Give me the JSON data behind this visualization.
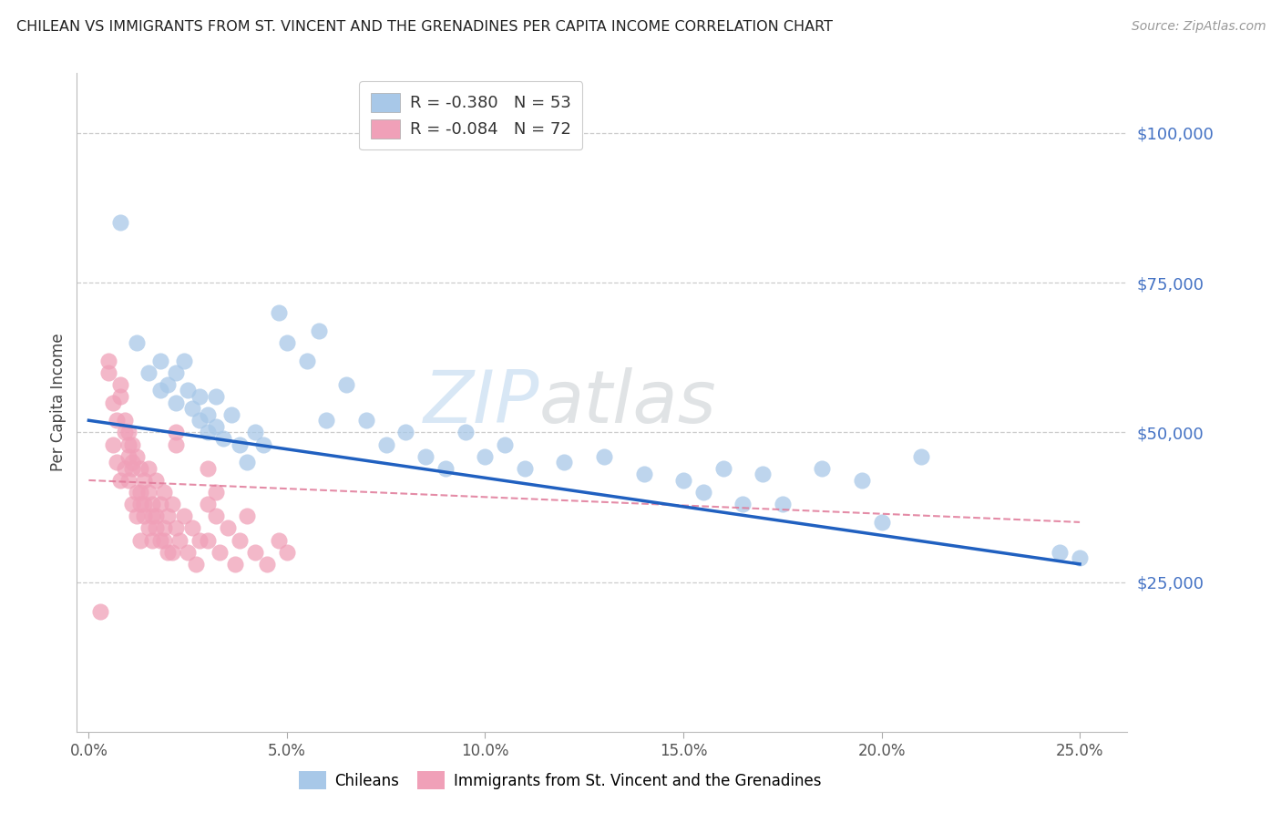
{
  "title": "CHILEAN VS IMMIGRANTS FROM ST. VINCENT AND THE GRENADINES PER CAPITA INCOME CORRELATION CHART",
  "source": "Source: ZipAtlas.com",
  "ylabel": "Per Capita Income",
  "xlabel_ticks": [
    "0.0%",
    "5.0%",
    "10.0%",
    "15.0%",
    "20.0%",
    "25.0%"
  ],
  "xlabel_vals": [
    0.0,
    0.05,
    0.1,
    0.15,
    0.2,
    0.25
  ],
  "ytick_labels": [
    "$25,000",
    "$50,000",
    "$75,000",
    "$100,000"
  ],
  "ytick_vals": [
    25000,
    50000,
    75000,
    100000
  ],
  "ylim": [
    0,
    110000
  ],
  "xlim": [
    -0.003,
    0.262
  ],
  "blue_R": "-0.380",
  "blue_N": "53",
  "pink_R": "-0.084",
  "pink_N": "72",
  "blue_color": "#a8c8e8",
  "blue_line_color": "#2060c0",
  "pink_color": "#f0a0b8",
  "pink_line_color": "#e07898",
  "blue_line_y0": 52000,
  "blue_line_y1": 28000,
  "pink_line_y0": 42000,
  "pink_line_y1": 35000,
  "blue_scatter_x": [
    0.008,
    0.012,
    0.015,
    0.018,
    0.018,
    0.02,
    0.022,
    0.022,
    0.024,
    0.025,
    0.026,
    0.028,
    0.028,
    0.03,
    0.03,
    0.032,
    0.032,
    0.034,
    0.036,
    0.038,
    0.04,
    0.042,
    0.044,
    0.048,
    0.05,
    0.055,
    0.058,
    0.06,
    0.065,
    0.07,
    0.075,
    0.08,
    0.085,
    0.09,
    0.095,
    0.1,
    0.105,
    0.11,
    0.12,
    0.13,
    0.14,
    0.15,
    0.155,
    0.16,
    0.165,
    0.17,
    0.175,
    0.185,
    0.195,
    0.2,
    0.21,
    0.245,
    0.25
  ],
  "blue_scatter_y": [
    85000,
    65000,
    60000,
    57000,
    62000,
    58000,
    55000,
    60000,
    62000,
    57000,
    54000,
    52000,
    56000,
    50000,
    53000,
    51000,
    56000,
    49000,
    53000,
    48000,
    45000,
    50000,
    48000,
    70000,
    65000,
    62000,
    67000,
    52000,
    58000,
    52000,
    48000,
    50000,
    46000,
    44000,
    50000,
    46000,
    48000,
    44000,
    45000,
    46000,
    43000,
    42000,
    40000,
    44000,
    38000,
    43000,
    38000,
    44000,
    42000,
    35000,
    46000,
    30000,
    29000
  ],
  "pink_scatter_x": [
    0.003,
    0.005,
    0.006,
    0.006,
    0.007,
    0.007,
    0.008,
    0.008,
    0.009,
    0.009,
    0.01,
    0.01,
    0.01,
    0.011,
    0.011,
    0.011,
    0.012,
    0.012,
    0.012,
    0.013,
    0.013,
    0.013,
    0.014,
    0.014,
    0.015,
    0.015,
    0.015,
    0.016,
    0.016,
    0.017,
    0.017,
    0.018,
    0.018,
    0.019,
    0.019,
    0.02,
    0.02,
    0.021,
    0.022,
    0.023,
    0.024,
    0.025,
    0.026,
    0.027,
    0.028,
    0.03,
    0.03,
    0.032,
    0.033,
    0.035,
    0.037,
    0.038,
    0.04,
    0.042,
    0.045,
    0.048,
    0.05,
    0.005,
    0.022,
    0.022,
    0.03,
    0.032,
    0.008,
    0.009,
    0.01,
    0.011,
    0.013,
    0.014,
    0.016,
    0.017,
    0.019,
    0.021
  ],
  "pink_scatter_y": [
    20000,
    60000,
    55000,
    48000,
    52000,
    45000,
    58000,
    42000,
    50000,
    44000,
    46000,
    50000,
    42000,
    48000,
    44000,
    38000,
    46000,
    40000,
    36000,
    44000,
    38000,
    32000,
    42000,
    36000,
    40000,
    34000,
    44000,
    38000,
    32000,
    42000,
    36000,
    38000,
    32000,
    40000,
    34000,
    36000,
    30000,
    38000,
    34000,
    32000,
    36000,
    30000,
    34000,
    28000,
    32000,
    38000,
    32000,
    36000,
    30000,
    34000,
    28000,
    32000,
    36000,
    30000,
    28000,
    32000,
    30000,
    62000,
    50000,
    48000,
    44000,
    40000,
    56000,
    52000,
    48000,
    45000,
    40000,
    38000,
    36000,
    34000,
    32000,
    30000
  ]
}
